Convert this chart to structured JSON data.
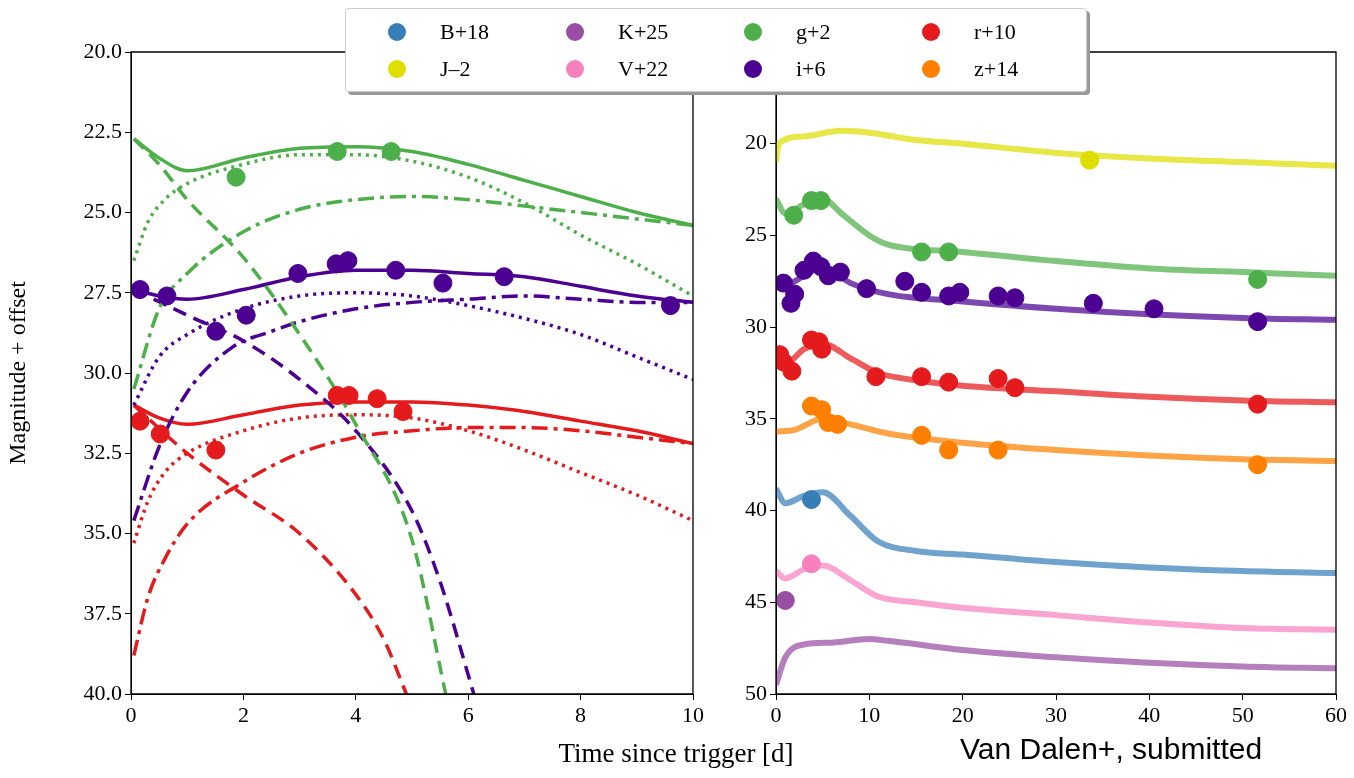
{
  "chart_data": [
    {
      "type": "line",
      "xlabel": "Time since trigger [d]",
      "ylabel": "Magnitude + offset",
      "xlim": [
        0,
        10
      ],
      "xticks": [
        0,
        2,
        4,
        6,
        8,
        10
      ],
      "ylim": [
        40,
        20
      ],
      "yticks": [
        {
          "value": 20,
          "label": "20.0"
        },
        22.5,
        {
          "value": 25,
          "label": "25.0"
        },
        27.5,
        {
          "value": 30,
          "label": "30.0"
        },
        32.5,
        {
          "value": 35,
          "label": "35.0"
        },
        37.5,
        {
          "value": 40,
          "label": "40.0"
        }
      ],
      "grid": false,
      "series": [
        {
          "type": "line",
          "line_style": "solid",
          "color": "#4daf4a",
          "x": [
            0.05,
            0.5,
            1,
            2,
            3,
            4,
            5,
            6,
            7,
            8,
            9,
            10
          ],
          "values": [
            22.7,
            23.3,
            23.7,
            23.3,
            23.0,
            22.95,
            23.1,
            23.5,
            24.0,
            24.5,
            25.0,
            25.4
          ]
        },
        {
          "type": "line",
          "line_style": "dotted",
          "color": "#4daf4a",
          "x": [
            0.05,
            0.3,
            0.6,
            1,
            2,
            3,
            4,
            5,
            6,
            7,
            8,
            9,
            10
          ],
          "values": [
            26.5,
            25.3,
            24.6,
            24.1,
            23.5,
            23.2,
            23.2,
            23.4,
            23.9,
            24.7,
            25.7,
            26.6,
            27.6
          ]
        },
        {
          "type": "line",
          "line_style": "dashed",
          "color": "#4daf4a",
          "x": [
            0.05,
            0.5,
            1,
            2,
            3,
            4,
            5,
            5.6
          ],
          "values": [
            22.7,
            23.5,
            24.6,
            26.4,
            28.8,
            31.6,
            35.2,
            40
          ]
        },
        {
          "type": "line",
          "line_style": "dashdot",
          "color": "#4daf4a",
          "x": [
            0.05,
            0.5,
            1,
            2,
            3,
            4,
            5,
            6,
            7,
            8,
            9,
            10
          ],
          "values": [
            30.5,
            28.0,
            26.9,
            25.6,
            24.9,
            24.6,
            24.5,
            24.6,
            24.8,
            25.0,
            25.2,
            25.4
          ]
        },
        {
          "type": "line",
          "line_style": "solid",
          "color": "#4b0092",
          "x": [
            0.05,
            0.5,
            1,
            2,
            3,
            4,
            5,
            6,
            7,
            8,
            9,
            10
          ],
          "values": [
            27.4,
            27.6,
            27.7,
            27.4,
            27.0,
            26.8,
            26.8,
            26.9,
            27.0,
            27.3,
            27.6,
            27.8
          ]
        },
        {
          "type": "line",
          "line_style": "dotted",
          "color": "#4b0092",
          "x": [
            0.05,
            0.5,
            1,
            2,
            3,
            4,
            5,
            6,
            7,
            8,
            9,
            10
          ],
          "values": [
            31.0,
            29.5,
            28.8,
            28.0,
            27.6,
            27.5,
            27.6,
            27.9,
            28.3,
            28.8,
            29.5,
            30.2
          ]
        },
        {
          "type": "line",
          "line_style": "dashed",
          "color": "#4b0092",
          "x": [
            0.05,
            1,
            2,
            3,
            4,
            5,
            5.5,
            6.1
          ],
          "values": [
            27.4,
            28.2,
            29.0,
            30.2,
            31.8,
            34.3,
            36.5,
            40
          ]
        },
        {
          "type": "line",
          "line_style": "dashdot",
          "color": "#4b0092",
          "x": [
            0.05,
            0.5,
            1,
            1.8,
            2.5,
            3,
            4,
            5,
            6,
            7,
            8,
            9,
            10
          ],
          "values": [
            34.6,
            32.3,
            30.6,
            29.2,
            28.7,
            28.4,
            28.0,
            27.8,
            27.7,
            27.6,
            27.7,
            27.8,
            27.8
          ]
        },
        {
          "type": "line",
          "line_style": "solid",
          "color": "#e41a1c",
          "x": [
            0.05,
            0.5,
            1,
            2,
            3,
            4,
            5,
            6,
            7,
            8,
            9,
            10
          ],
          "values": [
            31.0,
            31.4,
            31.6,
            31.3,
            31.0,
            30.9,
            30.9,
            31.0,
            31.2,
            31.5,
            31.8,
            32.2
          ]
        },
        {
          "type": "line",
          "line_style": "dotted",
          "color": "#e41a1c",
          "x": [
            0.05,
            0.3,
            0.6,
            1,
            2,
            3,
            4,
            5,
            6,
            7,
            8,
            9,
            10
          ],
          "values": [
            35.3,
            34.0,
            33.1,
            32.5,
            31.8,
            31.4,
            31.3,
            31.4,
            31.8,
            32.4,
            33.1,
            33.8,
            34.6
          ]
        },
        {
          "type": "line",
          "line_style": "dashed",
          "color": "#e41a1c",
          "x": [
            0.05,
            1,
            2,
            3,
            4,
            4.5,
            4.9
          ],
          "values": [
            31.0,
            32.5,
            33.8,
            35.0,
            36.9,
            38.3,
            40
          ]
        },
        {
          "type": "line",
          "line_style": "dashdot",
          "color": "#e41a1c",
          "x": [
            0.05,
            0.3,
            0.6,
            1,
            2,
            3,
            4,
            5,
            6,
            7,
            8,
            9,
            10
          ],
          "values": [
            38.8,
            37.0,
            35.8,
            34.7,
            33.4,
            32.5,
            32.0,
            31.8,
            31.7,
            31.7,
            31.8,
            32.0,
            32.2
          ]
        },
        {
          "type": "scatter",
          "marker": "circle",
          "color": "#4daf4a",
          "x": [
            1.87,
            3.67,
            4.63
          ],
          "values": [
            23.9,
            23.1,
            23.1
          ]
        },
        {
          "type": "scatter",
          "marker": "circle",
          "color": "#4b0092",
          "x": [
            0.16,
            0.64,
            1.51,
            2.05,
            2.97,
            3.65,
            3.86,
            4.71,
            5.55,
            6.64,
            9.6
          ],
          "values": [
            27.4,
            27.6,
            28.7,
            28.2,
            26.9,
            26.6,
            26.5,
            26.8,
            27.2,
            27.0,
            27.9
          ]
        },
        {
          "type": "scatter",
          "marker": "circle",
          "color": "#e41a1c",
          "x": [
            0.16,
            0.52,
            1.51,
            3.67,
            3.88,
            4.38,
            4.84
          ],
          "values": [
            31.5,
            31.9,
            32.4,
            30.7,
            30.7,
            30.8,
            31.2
          ]
        }
      ]
    },
    {
      "type": "line",
      "xlim": [
        0,
        60
      ],
      "xticks": [
        0,
        10,
        20,
        30,
        40,
        50,
        60
      ],
      "ylim": [
        50,
        15
      ],
      "yticks": [
        20,
        25,
        30,
        35,
        40,
        45,
        50
      ],
      "grid": false,
      "legend": "top",
      "annotations": [
        "Van Dalen+, submitted"
      ],
      "series": [
        {
          "type": "line",
          "color": "#dede00",
          "x": [
            0,
            0.3,
            3,
            7,
            10,
            15,
            20,
            30,
            40,
            50,
            60
          ],
          "values": [
            21,
            20.0,
            19.6,
            19.3,
            19.4,
            19.8,
            20.0,
            20.5,
            20.8,
            21.0,
            21.2
          ]
        },
        {
          "type": "line",
          "color": "#4daf4a",
          "x": [
            0,
            1,
            3,
            5,
            7,
            10,
            12,
            20,
            30,
            40,
            50,
            60
          ],
          "values": [
            23.0,
            23.8,
            23.3,
            23.0,
            23.8,
            25.0,
            25.5,
            25.9,
            26.4,
            26.8,
            27.0,
            27.2
          ]
        },
        {
          "type": "line",
          "color": "#4b0092",
          "x": [
            0,
            1,
            3,
            5,
            8,
            12,
            20,
            30,
            40,
            50,
            60
          ],
          "values": [
            27.5,
            27.7,
            27.2,
            26.7,
            27.6,
            28.2,
            28.6,
            29.0,
            29.3,
            29.5,
            29.6
          ]
        },
        {
          "type": "line",
          "color": "#e41a1c",
          "x": [
            0,
            1,
            3,
            5,
            8,
            11,
            15,
            20,
            30,
            40,
            50,
            60
          ],
          "values": [
            31.5,
            32.0,
            31.2,
            30.9,
            31.7,
            32.5,
            32.9,
            33.2,
            33.5,
            33.8,
            34.0,
            34.1
          ]
        },
        {
          "type": "line",
          "color": "#ff7f00",
          "x": [
            0,
            2,
            5,
            8,
            12,
            20,
            30,
            40,
            50,
            60
          ],
          "values": [
            35.7,
            35.6,
            35.0,
            35.3,
            35.8,
            36.3,
            36.7,
            37.0,
            37.2,
            37.3
          ]
        },
        {
          "type": "line",
          "color": "#377eb8",
          "x": [
            0,
            1,
            3,
            5,
            8,
            11,
            15,
            20,
            30,
            40,
            50,
            60
          ],
          "values": [
            38.8,
            39.6,
            39.2,
            39.0,
            40.3,
            41.7,
            42.2,
            42.4,
            42.8,
            43.1,
            43.3,
            43.4
          ]
        },
        {
          "type": "line",
          "color": "#f781bf",
          "x": [
            0,
            1,
            3,
            5,
            8,
            11,
            15,
            20,
            30,
            40,
            50,
            60
          ],
          "values": [
            43.3,
            43.7,
            43.2,
            43.0,
            43.8,
            44.7,
            45.0,
            45.3,
            45.7,
            46.1,
            46.4,
            46.5
          ]
        },
        {
          "type": "line",
          "color": "#984ea3",
          "x": [
            0,
            1,
            3,
            6,
            10,
            12,
            20,
            30,
            40,
            50,
            60
          ],
          "values": [
            49.5,
            48.0,
            47.3,
            47.2,
            47.0,
            47.1,
            47.6,
            48.0,
            48.3,
            48.5,
            48.6
          ]
        },
        {
          "type": "scatter",
          "marker": "circle",
          "name": "B+18",
          "color": "#377eb8",
          "x": [
            3.8
          ],
          "values": [
            39.4
          ]
        },
        {
          "type": "scatter",
          "marker": "circle",
          "name": "J–2",
          "color": "#dede00",
          "x": [
            33.6
          ],
          "values": [
            20.9
          ]
        },
        {
          "type": "scatter",
          "marker": "circle",
          "name": "K+25",
          "color": "#984ea3",
          "x": [
            1.0
          ],
          "values": [
            44.9
          ]
        },
        {
          "type": "scatter",
          "marker": "circle",
          "name": "V+22",
          "color": "#f781bf",
          "x": [
            3.8
          ],
          "values": [
            42.9
          ]
        },
        {
          "type": "scatter",
          "marker": "circle",
          "name": "g+2",
          "color": "#4daf4a",
          "x": [
            1.9,
            3.8,
            4.8,
            15.6,
            18.5,
            51.6
          ],
          "values": [
            23.9,
            23.1,
            23.1,
            25.9,
            25.9,
            27.4
          ]
        },
        {
          "type": "scatter",
          "marker": "circle",
          "name": "i+6",
          "color": "#4b0092",
          "x": [
            0.8,
            1.6,
            2.0,
            3.0,
            4.0,
            4.8,
            5.6,
            6.9,
            9.7,
            13.8,
            15.6,
            18.5,
            19.7,
            23.8,
            25.6,
            34.0,
            40.5,
            51.6
          ],
          "values": [
            27.6,
            28.7,
            28.2,
            26.9,
            26.4,
            26.7,
            27.2,
            27.0,
            27.9,
            27.5,
            28.1,
            28.3,
            28.1,
            28.3,
            28.4,
            28.7,
            29.0,
            29.7
          ]
        },
        {
          "type": "scatter",
          "marker": "circle",
          "name": "r+10",
          "color": "#e41a1c",
          "x": [
            0.4,
            0.8,
            1.7,
            3.8,
            4.6,
            4.9,
            10.7,
            15.6,
            18.5,
            23.8,
            25.6,
            51.6
          ],
          "values": [
            31.5,
            31.9,
            32.4,
            30.7,
            30.8,
            31.2,
            32.7,
            32.7,
            33.0,
            32.8,
            33.3,
            34.2
          ]
        },
        {
          "type": "scatter",
          "marker": "circle",
          "name": "z+14",
          "color": "#ff7f00",
          "x": [
            3.8,
            4.9,
            5.6,
            6.6,
            15.6,
            18.5,
            23.8,
            51.6
          ],
          "values": [
            34.3,
            34.5,
            35.2,
            35.3,
            35.9,
            36.7,
            36.7,
            37.5
          ]
        }
      ]
    }
  ]
}
